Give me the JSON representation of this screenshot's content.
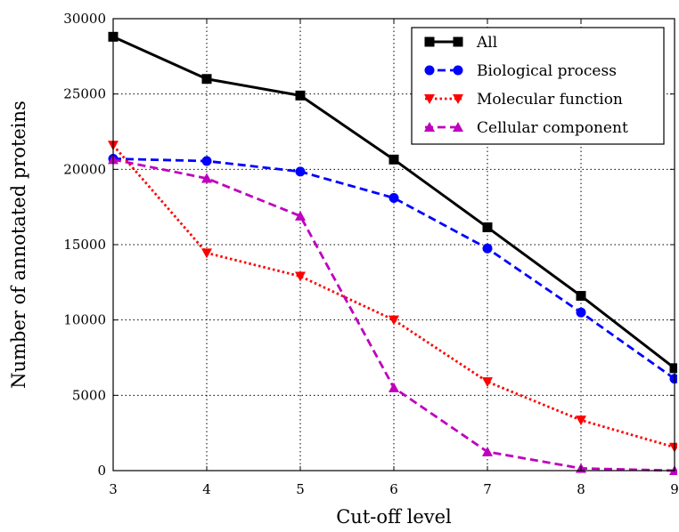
{
  "chart_data": {
    "type": "line",
    "xlabel": "Cut-off level",
    "ylabel": "Number of annotated proteins",
    "x": [
      3,
      4,
      5,
      6,
      7,
      8,
      9
    ],
    "xlim": [
      3,
      9
    ],
    "ylim": [
      0,
      30000
    ],
    "xticks": [
      "3",
      "4",
      "5",
      "6",
      "7",
      "8",
      "9"
    ],
    "yticks": [
      "0",
      "5000",
      "10000",
      "15000",
      "20000",
      "25000",
      "30000"
    ],
    "grid": true,
    "legend_position": "top-right",
    "series": [
      {
        "name": "All",
        "values": [
          28800,
          26000,
          24900,
          20650,
          16150,
          11600,
          6800
        ],
        "color": "#000000",
        "marker": "square",
        "linestyle": "solid"
      },
      {
        "name": "Biological process",
        "values": [
          20700,
          20550,
          19850,
          18100,
          14750,
          10500,
          6100
        ],
        "color": "#0000ff",
        "marker": "circle",
        "linestyle": "dashed"
      },
      {
        "name": "Molecular function",
        "values": [
          21600,
          14450,
          12900,
          10000,
          5900,
          3350,
          1550
        ],
        "color": "#ff0000",
        "marker": "triangle-down",
        "linestyle": "dotted"
      },
      {
        "name": "Cellular component",
        "values": [
          20650,
          19400,
          16900,
          5500,
          1250,
          150,
          0
        ],
        "color": "#bf00bf",
        "marker": "triangle-up",
        "linestyle": "dashed"
      }
    ]
  }
}
